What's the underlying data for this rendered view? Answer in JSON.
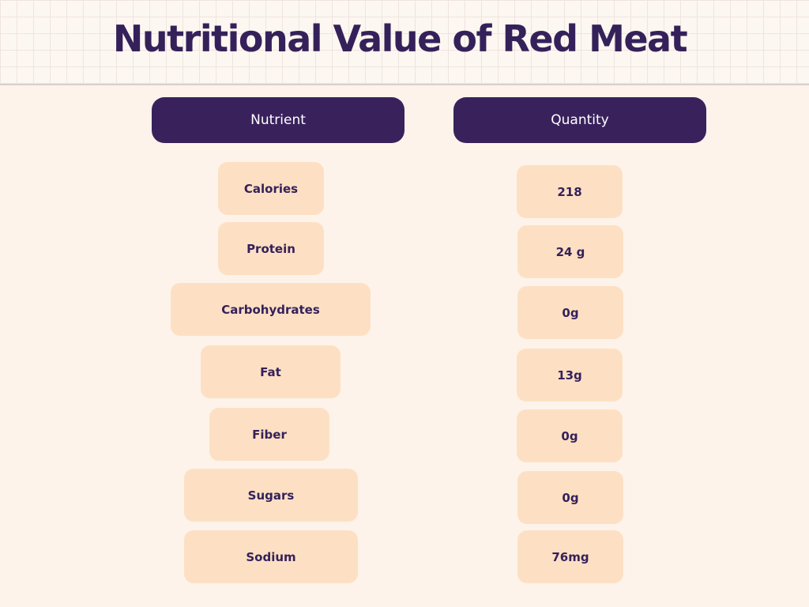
{
  "title": "Nutritional Value of Red Meat",
  "headers": {
    "nutrient": "Nutrient",
    "quantity": "Quantity"
  },
  "rows": [
    {
      "nutrient": "Calories",
      "quantity": "218"
    },
    {
      "nutrient": "Protein",
      "quantity": "24 g"
    },
    {
      "nutrient": "Carbohydrates",
      "quantity": "0g"
    },
    {
      "nutrient": "Fat",
      "quantity": "13g"
    },
    {
      "nutrient": "Fiber",
      "quantity": "0g"
    },
    {
      "nutrient": "Sugars",
      "quantity": "0g"
    },
    {
      "nutrient": "Sodium",
      "quantity": "76mg"
    }
  ],
  "colors": {
    "background": "#fdf3ea",
    "header_fill": "#39225c",
    "pill_fill": "#fde0c3",
    "text": "#35215a"
  }
}
